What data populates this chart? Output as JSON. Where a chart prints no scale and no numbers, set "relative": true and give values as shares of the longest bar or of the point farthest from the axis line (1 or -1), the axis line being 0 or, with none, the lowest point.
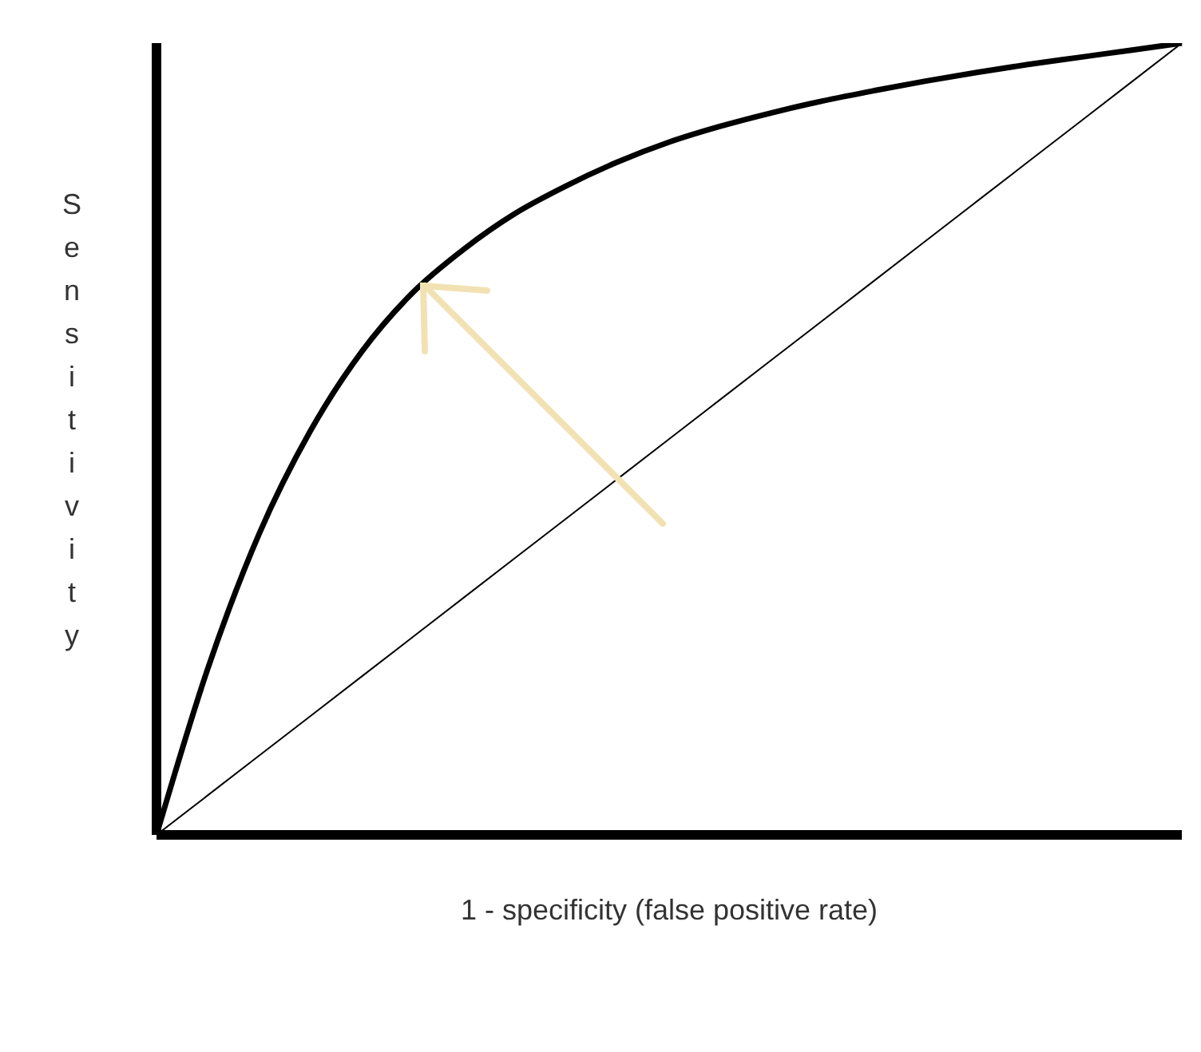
{
  "chart_data": {
    "type": "line",
    "relative": true,
    "xlabel": "1 - specificity (false positive rate)",
    "ylabel": "Sensitivity",
    "categories": [
      null,
      null,
      null,
      null,
      null,
      null,
      null,
      null,
      null,
      null,
      null,
      null,
      null,
      null,
      null,
      null,
      null,
      null,
      null,
      null,
      null
    ],
    "series": [
      {
        "color": "#000000",
        "values": [
          0,
          0.21,
          0.38,
          0.51,
          0.61,
          0.685,
          0.74,
          0.785,
          0.82,
          0.85,
          0.875,
          0.895,
          0.912,
          0.927,
          0.94,
          0.952,
          0.963,
          0.973,
          0.982,
          0.991,
          1
        ]
      },
      {
        "color": "#000000",
        "values": [
          0,
          0.05,
          0.1,
          0.15,
          0.2,
          0.25,
          0.3,
          0.35,
          0.4,
          0.45,
          0.5,
          0.55,
          0.6,
          0.65,
          0.7,
          0.75,
          0.8,
          0.85,
          0.9,
          0.95,
          1
        ]
      }
    ],
    "marker": "none"
  }
}
